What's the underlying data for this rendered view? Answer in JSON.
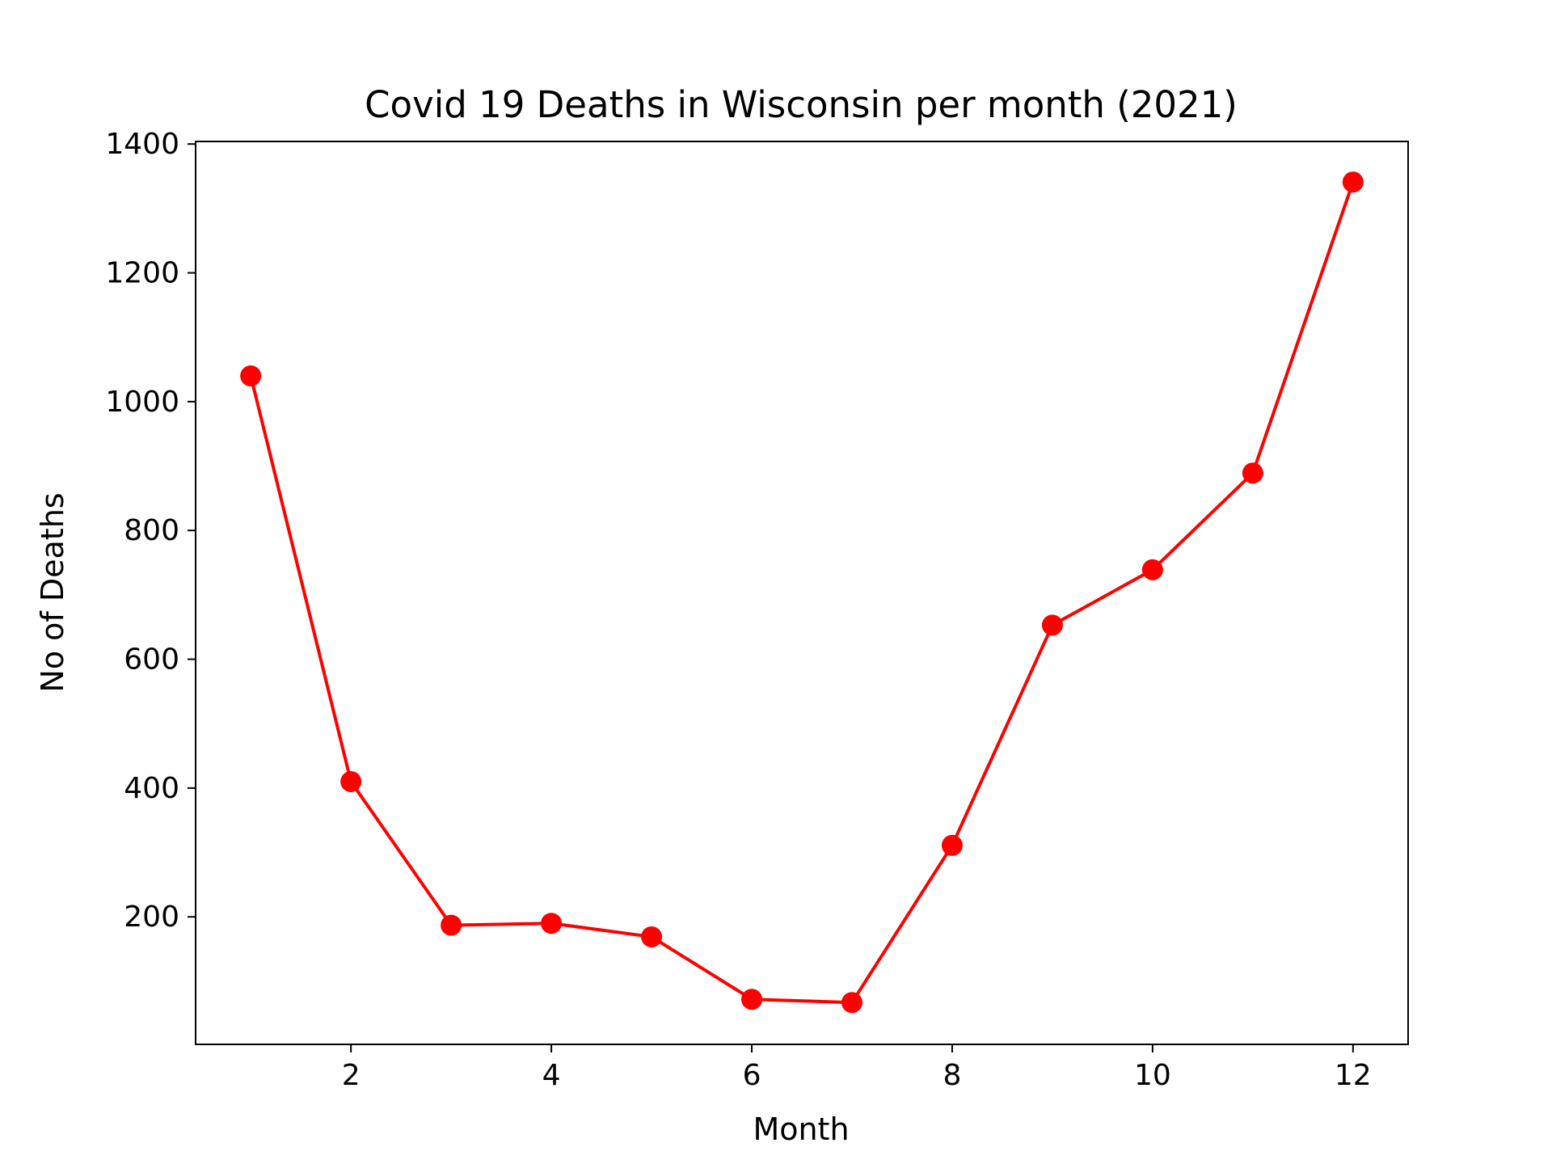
{
  "chart_data": {
    "type": "line",
    "title": "Covid 19 Deaths in Wisconsin per month (2021)",
    "xlabel": "Month",
    "ylabel": "No of Deaths",
    "x": [
      1,
      2,
      3,
      4,
      5,
      6,
      7,
      8,
      9,
      10,
      11,
      12
    ],
    "series": [
      {
        "values": [
          1040,
          410,
          187,
          190,
          169,
          72,
          67,
          311,
          653,
          739,
          889,
          1341
        ],
        "color": "#ff0000",
        "marker": "circle"
      }
    ],
    "xlim": [
      0.45,
      12.55
    ],
    "ylim": [
      2,
      1404
    ],
    "xticks": [
      2,
      4,
      6,
      8,
      10,
      12
    ],
    "yticks": [
      200,
      400,
      600,
      800,
      1000,
      1200,
      1400
    ],
    "grid": false,
    "legend": "none"
  }
}
